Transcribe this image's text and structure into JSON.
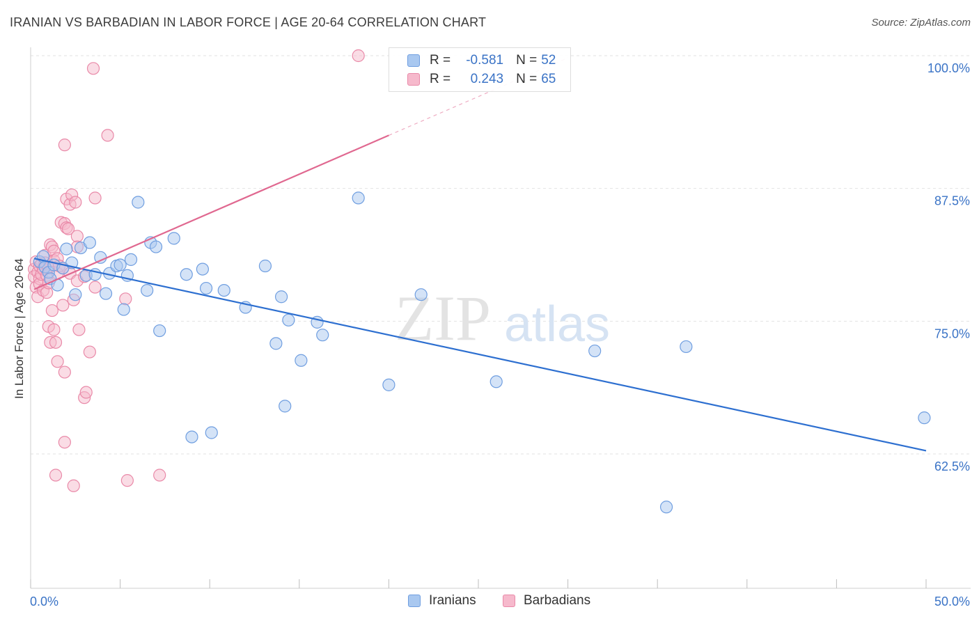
{
  "header": {
    "title": "IRANIAN VS BARBADIAN IN LABOR FORCE | AGE 20-64 CORRELATION CHART",
    "source": "Source: ZipAtlas.com"
  },
  "watermark": {
    "zip": "ZIP",
    "atlas": "atlas"
  },
  "legend": {
    "r_label": "R =",
    "n_label": "N =",
    "series": [
      {
        "r": "-0.581",
        "n": "52"
      },
      {
        "r": "0.243",
        "n": "65"
      }
    ]
  },
  "colors": {
    "blue_fill": "#a9c8f0",
    "blue_stroke": "#6f9ee0",
    "blue_line": "#2d6fd0",
    "pink_fill": "#f6b9cc",
    "pink_stroke": "#e989a8",
    "pink_line": "#e06890",
    "tick_text": "#3a73c6"
  },
  "chart_data": {
    "type": "scatter",
    "title": "IRANIAN VS BARBADIAN IN LABOR FORCE | AGE 20-64 CORRELATION CHART",
    "xlabel": "",
    "ylabel": "In Labor Force | Age 20-64",
    "xlim": [
      0,
      50
    ],
    "ylim": [
      52.5,
      102
    ],
    "x_tick_labels": [
      "0.0%",
      "50.0%"
    ],
    "y_ticks": [
      62.5,
      75.0,
      87.5,
      100.0
    ],
    "y_tick_labels": [
      "62.5%",
      "75.0%",
      "87.5%",
      "100.0%"
    ],
    "series": [
      {
        "name": "Iranians",
        "r": -0.581,
        "n": 52,
        "trend": {
          "x0": 0.2,
          "y0": 80.9,
          "x1": 50.0,
          "y1": 62.8
        },
        "points": [
          [
            0.5,
            80.6
          ],
          [
            0.7,
            81.1
          ],
          [
            0.8,
            80.1
          ],
          [
            1.0,
            79.6
          ],
          [
            1.1,
            79.0
          ],
          [
            1.3,
            80.3
          ],
          [
            1.5,
            78.4
          ],
          [
            1.8,
            80.0
          ],
          [
            2.0,
            81.8
          ],
          [
            2.3,
            80.5
          ],
          [
            2.5,
            77.5
          ],
          [
            2.8,
            81.9
          ],
          [
            3.1,
            79.3
          ],
          [
            3.3,
            82.4
          ],
          [
            3.6,
            79.4
          ],
          [
            3.9,
            81.0
          ],
          [
            4.2,
            77.6
          ],
          [
            4.4,
            79.5
          ],
          [
            4.8,
            80.2
          ],
          [
            5.0,
            80.3
          ],
          [
            5.2,
            76.1
          ],
          [
            5.4,
            79.3
          ],
          [
            5.6,
            80.8
          ],
          [
            6.0,
            86.2
          ],
          [
            6.5,
            77.9
          ],
          [
            6.7,
            82.4
          ],
          [
            7.0,
            82.0
          ],
          [
            7.2,
            74.1
          ],
          [
            8.0,
            82.8
          ],
          [
            8.7,
            79.4
          ],
          [
            9.0,
            64.1
          ],
          [
            9.6,
            79.9
          ],
          [
            9.8,
            78.1
          ],
          [
            10.1,
            64.5
          ],
          [
            10.8,
            77.9
          ],
          [
            12.0,
            76.3
          ],
          [
            13.1,
            80.2
          ],
          [
            13.7,
            72.9
          ],
          [
            14.0,
            77.3
          ],
          [
            14.2,
            67.0
          ],
          [
            14.4,
            75.1
          ],
          [
            15.1,
            71.3
          ],
          [
            16.0,
            74.9
          ],
          [
            16.3,
            73.7
          ],
          [
            18.3,
            86.6
          ],
          [
            20.0,
            69.0
          ],
          [
            21.8,
            77.5
          ],
          [
            26.0,
            69.3
          ],
          [
            31.5,
            72.2
          ],
          [
            35.5,
            57.5
          ],
          [
            36.6,
            72.6
          ],
          [
            49.9,
            65.9
          ]
        ]
      },
      {
        "name": "Barbadians",
        "r": 0.243,
        "n": 65,
        "trend": {
          "x0": 0.2,
          "y0": 78.0,
          "x1": 20.0,
          "y1": 92.5,
          "dash_x1": 30.0,
          "dash_y1": 99.8
        },
        "points": [
          [
            0.2,
            79.9
          ],
          [
            0.2,
            79.2
          ],
          [
            0.3,
            80.6
          ],
          [
            0.3,
            78.2
          ],
          [
            0.4,
            79.6
          ],
          [
            0.4,
            77.3
          ],
          [
            0.5,
            80.2
          ],
          [
            0.5,
            79.0
          ],
          [
            0.5,
            78.5
          ],
          [
            0.6,
            80.4
          ],
          [
            0.6,
            79.4
          ],
          [
            0.7,
            79.9
          ],
          [
            0.7,
            77.9
          ],
          [
            0.8,
            81.2
          ],
          [
            0.8,
            80.5
          ],
          [
            0.9,
            79.3
          ],
          [
            0.9,
            77.7
          ],
          [
            1.0,
            80.0
          ],
          [
            1.0,
            78.6
          ],
          [
            1.0,
            74.5
          ],
          [
            1.1,
            82.2
          ],
          [
            1.1,
            73.0
          ],
          [
            1.2,
            82.0
          ],
          [
            1.2,
            76.0
          ],
          [
            1.3,
            81.6
          ],
          [
            1.3,
            80.7
          ],
          [
            1.3,
            74.2
          ],
          [
            1.4,
            73.0
          ],
          [
            1.4,
            60.5
          ],
          [
            1.5,
            80.9
          ],
          [
            1.5,
            79.5
          ],
          [
            1.5,
            71.2
          ],
          [
            1.6,
            80.2
          ],
          [
            1.7,
            84.3
          ],
          [
            1.8,
            80.0
          ],
          [
            1.8,
            76.5
          ],
          [
            1.9,
            84.2
          ],
          [
            1.9,
            63.6
          ],
          [
            1.9,
            91.6
          ],
          [
            1.9,
            70.2
          ],
          [
            2.0,
            83.8
          ],
          [
            2.0,
            86.5
          ],
          [
            2.1,
            83.7
          ],
          [
            2.2,
            86.0
          ],
          [
            2.2,
            79.5
          ],
          [
            2.3,
            86.9
          ],
          [
            2.4,
            77.0
          ],
          [
            2.4,
            59.5
          ],
          [
            2.5,
            86.2
          ],
          [
            2.6,
            83.0
          ],
          [
            2.6,
            82.0
          ],
          [
            2.6,
            78.8
          ],
          [
            2.7,
            74.2
          ],
          [
            3.0,
            79.2
          ],
          [
            3.0,
            67.8
          ],
          [
            3.1,
            68.3
          ],
          [
            3.3,
            72.1
          ],
          [
            3.5,
            98.8
          ],
          [
            3.6,
            86.6
          ],
          [
            3.6,
            78.2
          ],
          [
            4.3,
            92.5
          ],
          [
            5.3,
            77.1
          ],
          [
            5.4,
            60.0
          ],
          [
            7.2,
            60.5
          ],
          [
            18.3,
            100.0
          ]
        ]
      }
    ]
  }
}
